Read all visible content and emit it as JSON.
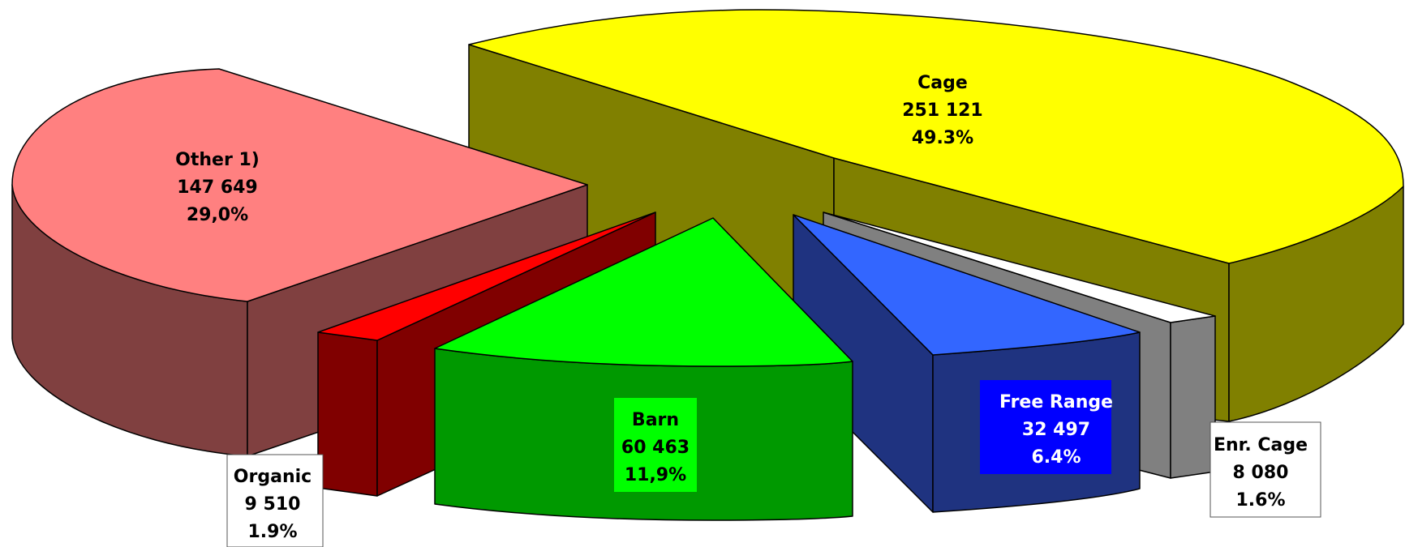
{
  "chart_data": {
    "type": "pie",
    "style": "3d-exploded",
    "slices": [
      {
        "name": "Cage",
        "value": 251121,
        "value_label": "251 121",
        "percent_label": "49.3%",
        "color": "#ffff00",
        "side_color": "#808000"
      },
      {
        "name": "Enr. Cage",
        "value": 8080,
        "value_label": "8 080",
        "percent_label": "1.6%",
        "color": "#ffffff",
        "side_color": "#808080"
      },
      {
        "name": "Free Range",
        "value": 32497,
        "value_label": "32 497",
        "percent_label": "6.4%",
        "color": "#3366ff",
        "side_color": "#1f3380"
      },
      {
        "name": "Barn",
        "value": 60463,
        "value_label": "60 463",
        "percent_label": "11,9%",
        "color": "#00ff00",
        "side_color": "#009900"
      },
      {
        "name": "Organic",
        "value": 9510,
        "value_label": "9 510",
        "percent_label": "1.9%",
        "color": "#ff0000",
        "side_color": "#800000"
      },
      {
        "name": "Other 1)",
        "value": 147649,
        "value_label": "147 649",
        "percent_label": "29,0%",
        "color": "#ff8080",
        "side_color": "#804040"
      }
    ],
    "label_boxes": {
      "Barn": "#00ff00",
      "Free Range": "#0000ff",
      "Enr. Cage": "#ffffff",
      "Organic": "#ffffff"
    }
  }
}
